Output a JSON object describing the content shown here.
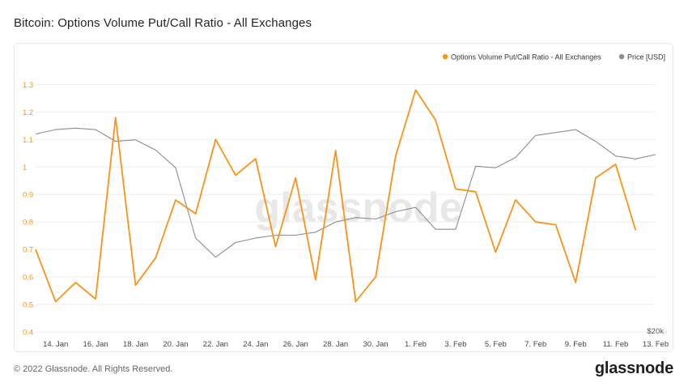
{
  "page": {
    "title": "Bitcoin: Options Volume Put/Call Ratio - All Exchanges",
    "copyright": "© 2022 Glassnode. All Rights Reserved.",
    "brand": "glassnode",
    "watermark": "glassnode"
  },
  "colors": {
    "ratio": "#f7931a",
    "price": "#8c8c8c",
    "left_axis": "#f7931a",
    "right_axis": "#555555",
    "grid": "#eeeeee"
  },
  "chart_data": {
    "type": "line",
    "title": "Bitcoin: Options Volume Put/Call Ratio - All Exchanges",
    "x_tick_labels": [
      "14. Jan",
      "16. Jan",
      "18. Jan",
      "20. Jan",
      "22. Jan",
      "24. Jan",
      "26. Jan",
      "28. Jan",
      "30. Jan",
      "1. Feb",
      "3. Feb",
      "5. Feb",
      "7. Feb",
      "9. Feb",
      "11. Feb",
      "13. Feb"
    ],
    "x": [
      "13. Jan",
      "14. Jan",
      "15. Jan",
      "16. Jan",
      "17. Jan",
      "18. Jan",
      "19. Jan",
      "20. Jan",
      "21. Jan",
      "22. Jan",
      "23. Jan",
      "24. Jan",
      "25. Jan",
      "26. Jan",
      "27. Jan",
      "28. Jan",
      "29. Jan",
      "30. Jan",
      "31. Jan",
      "1. Feb",
      "2. Feb",
      "3. Feb",
      "4. Feb",
      "5. Feb",
      "6. Feb",
      "7. Feb",
      "8. Feb",
      "9. Feb",
      "10. Feb",
      "11. Feb",
      "12. Feb",
      "13. Feb"
    ],
    "left_axis": {
      "ticks": [
        0.4,
        0.5,
        0.6,
        0.7,
        0.8,
        0.9,
        1,
        1.1,
        1.2,
        1.3
      ],
      "ylim": [
        0.4,
        1.36
      ]
    },
    "right_axis": {
      "tick_label": "$20k",
      "ylim": [
        30000,
        48000
      ]
    },
    "legend_position": "top-right",
    "series": [
      {
        "name": "Options Volume Put/Call Ratio - All Exchanges",
        "axis": "left",
        "values": [
          0.7,
          0.51,
          0.58,
          0.52,
          1.18,
          0.57,
          0.67,
          0.88,
          0.83,
          1.1,
          0.97,
          1.03,
          0.71,
          0.96,
          0.59,
          1.06,
          0.51,
          0.6,
          1.04,
          1.28,
          1.17,
          0.92,
          0.91,
          0.69,
          0.88,
          0.8,
          0.79,
          0.58,
          0.96,
          1.01,
          0.77,
          null
        ]
      },
      {
        "name": "Price [USD]",
        "axis": "right",
        "values": [
          43500,
          43800,
          43900,
          43800,
          43000,
          43100,
          42400,
          41200,
          36400,
          35100,
          36100,
          36400,
          36600,
          36600,
          36800,
          37500,
          37800,
          37700,
          38200,
          38500,
          37000,
          37000,
          41300,
          41200,
          41900,
          43400,
          43600,
          43800,
          43000,
          42000,
          41800,
          42100
        ]
      }
    ]
  }
}
